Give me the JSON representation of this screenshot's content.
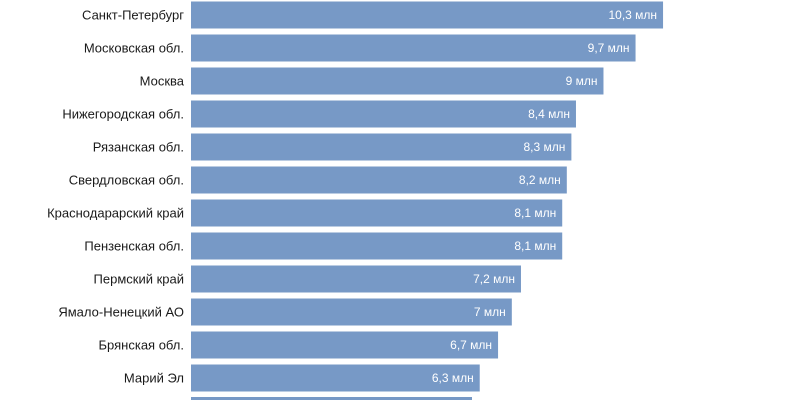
{
  "colors": {
    "bar": "#7799c6",
    "value_label": "#ffffff",
    "category_label": "#1a1a1a",
    "background": "#ffffff"
  },
  "chart_data": {
    "type": "bar",
    "orientation": "horizontal",
    "title": "",
    "xlabel": "",
    "ylabel": "",
    "grid": false,
    "categories": [
      "Санкт-Петербург",
      "Московская обл.",
      "Москва",
      "Нижегородская обл.",
      "Рязанская обл.",
      "Свердловская обл.",
      "Краснодарарский край",
      "Пензенская обл.",
      "Пермский край",
      "Ямало-Ненецкий АО",
      "Брянская обл.",
      "Марий Эл"
    ],
    "values": [
      10.3,
      9.7,
      9.0,
      8.4,
      8.3,
      8.2,
      8.1,
      8.1,
      7.2,
      7.0,
      6.7,
      6.3
    ],
    "value_labels": [
      "10,3 млн",
      "9,7 млн",
      "9 млн",
      "8,4 млн",
      "8,3 млн",
      "8,2 млн",
      "8,1 млн",
      "8,1 млн",
      "7,2 млн",
      "7 млн",
      "6,7 млн",
      "6,3 млн"
    ]
  }
}
